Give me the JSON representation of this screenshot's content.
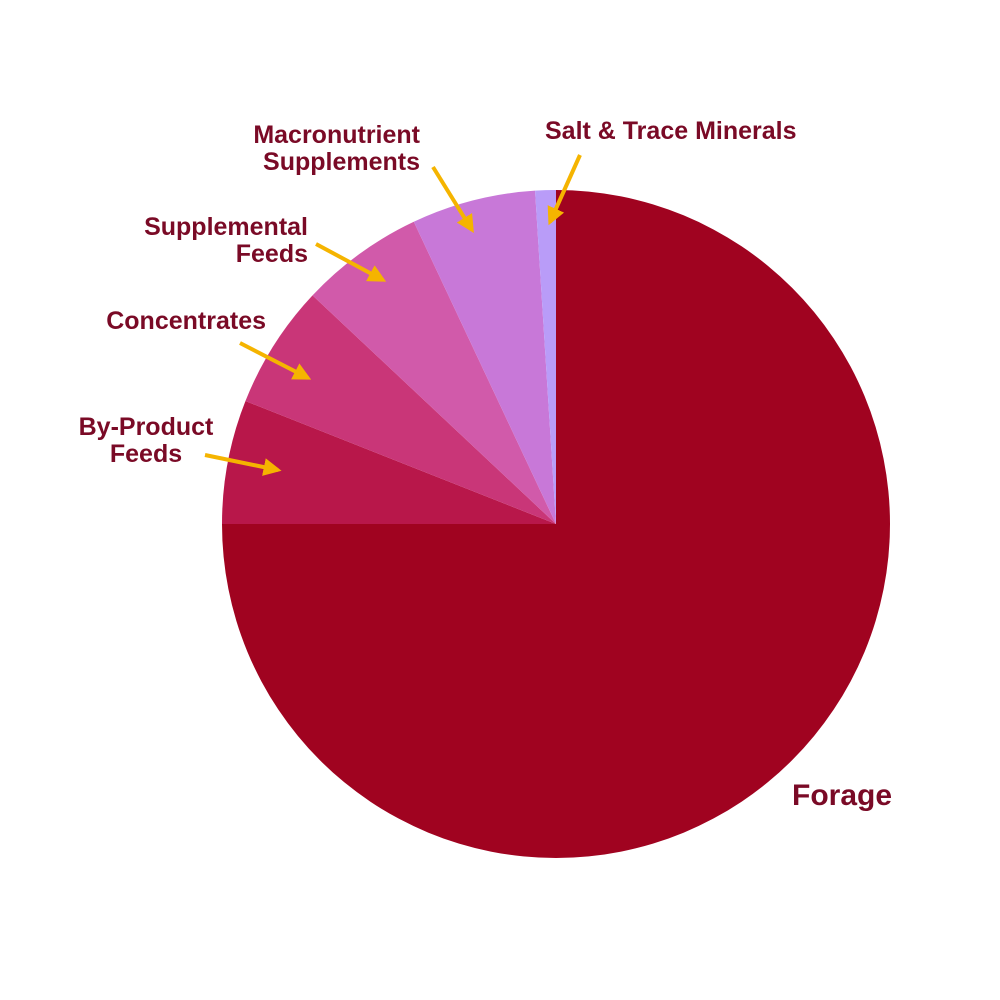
{
  "chart_data": {
    "type": "pie",
    "categories": [
      "Forage",
      "By-Product Feeds",
      "Concentrates",
      "Supplemental Feeds",
      "Macronutrient Supplements",
      "Salt & Trace Minerals"
    ],
    "values": [
      75,
      6,
      6,
      6,
      6,
      1
    ],
    "colors": [
      "#a00320",
      "#b8174a",
      "#c93678",
      "#d15aaa",
      "#c878d8",
      "#b99cf8"
    ],
    "start_angle": 0,
    "direction": "clockwise"
  }
}
